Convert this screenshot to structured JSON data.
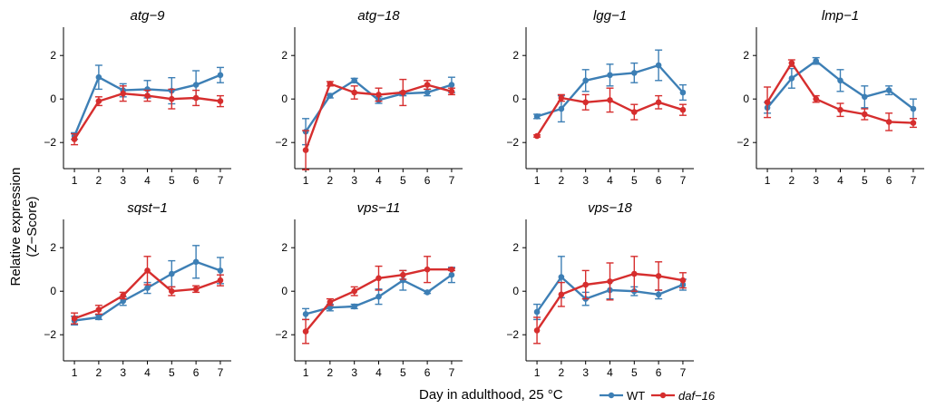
{
  "figure": {
    "ylabel_line1": "Relative expression",
    "ylabel_line2": "(Z−Score)",
    "xlabel": "Day in adulthood, 25 °C"
  },
  "legend": [
    {
      "name": "WT",
      "color": "#3d7fb5",
      "italic": false
    },
    {
      "name": "daf−16",
      "color": "#d62e2e",
      "italic": true
    }
  ],
  "chart_data": [
    {
      "type": "line",
      "title": "atg−9",
      "x": [
        1,
        2,
        3,
        4,
        5,
        6,
        7
      ],
      "ylim": [
        -3.2,
        3.3
      ],
      "yticks": [
        -2,
        0,
        2
      ],
      "xticks": [
        1,
        2,
        3,
        4,
        5,
        6,
        7
      ],
      "series": [
        {
          "name": "WT",
          "values": [
            -1.7,
            1.0,
            0.4,
            0.45,
            0.38,
            0.65,
            1.1
          ],
          "errors": [
            0.15,
            0.55,
            0.3,
            0.4,
            0.6,
            0.65,
            0.35
          ]
        },
        {
          "name": "daf−16",
          "values": [
            -1.85,
            -0.1,
            0.25,
            0.15,
            0.0,
            0.05,
            -0.1
          ],
          "errors": [
            0.25,
            0.2,
            0.35,
            0.25,
            0.45,
            0.35,
            0.25
          ]
        }
      ]
    },
    {
      "type": "line",
      "title": "atg−18",
      "x": [
        1,
        2,
        3,
        4,
        5,
        6,
        7
      ],
      "ylim": [
        -3.2,
        3.3
      ],
      "yticks": [
        -2,
        0,
        2
      ],
      "xticks": [
        1,
        2,
        3,
        4,
        5,
        6,
        7
      ],
      "series": [
        {
          "name": "WT",
          "values": [
            -1.5,
            0.15,
            0.85,
            -0.05,
            0.25,
            0.3,
            0.65
          ],
          "errors": [
            0.6,
            0.1,
            0.1,
            0.15,
            0.1,
            0.15,
            0.35
          ]
        },
        {
          "name": "daf−16",
          "values": [
            -2.35,
            0.7,
            0.3,
            0.2,
            0.3,
            0.65,
            0.35
          ],
          "errors": [
            0.9,
            0.1,
            0.3,
            0.3,
            0.6,
            0.2,
            0.15
          ]
        }
      ]
    },
    {
      "type": "line",
      "title": "lgg−1",
      "x": [
        1,
        2,
        3,
        4,
        5,
        6,
        7
      ],
      "ylim": [
        -3.2,
        3.3
      ],
      "yticks": [
        -2,
        0,
        2
      ],
      "xticks": [
        1,
        2,
        3,
        4,
        5,
        6,
        7
      ],
      "series": [
        {
          "name": "WT",
          "values": [
            -0.8,
            -0.45,
            0.85,
            1.1,
            1.2,
            1.55,
            0.3
          ],
          "errors": [
            0.1,
            0.6,
            0.5,
            0.5,
            0.45,
            0.7,
            0.35
          ]
        },
        {
          "name": "daf−16",
          "values": [
            -1.7,
            0.05,
            -0.15,
            -0.05,
            -0.6,
            -0.15,
            -0.5
          ],
          "errors": [
            0.05,
            0.15,
            0.35,
            0.55,
            0.35,
            0.3,
            0.25
          ]
        }
      ]
    },
    {
      "type": "line",
      "title": "lmp−1",
      "x": [
        1,
        2,
        3,
        4,
        5,
        6,
        7
      ],
      "ylim": [
        -3.2,
        3.3
      ],
      "yticks": [
        -2,
        0,
        2
      ],
      "xticks": [
        1,
        2,
        3,
        4,
        5,
        6,
        7
      ],
      "series": [
        {
          "name": "WT",
          "values": [
            -0.4,
            0.95,
            1.75,
            0.85,
            0.1,
            0.4,
            -0.45
          ],
          "errors": [
            0.25,
            0.45,
            0.15,
            0.5,
            0.5,
            0.2,
            0.45
          ]
        },
        {
          "name": "daf−16",
          "values": [
            -0.15,
            1.65,
            0.0,
            -0.5,
            -0.7,
            -1.05,
            -1.1
          ],
          "errors": [
            0.7,
            0.15,
            0.15,
            0.3,
            0.25,
            0.4,
            0.2
          ]
        }
      ]
    },
    {
      "type": "line",
      "title": "sqst−1",
      "x": [
        1,
        2,
        3,
        4,
        5,
        6,
        7
      ],
      "ylim": [
        -3.2,
        3.3
      ],
      "yticks": [
        -2,
        0,
        2
      ],
      "xticks": [
        1,
        2,
        3,
        4,
        5,
        6,
        7
      ],
      "series": [
        {
          "name": "WT",
          "values": [
            -1.35,
            -1.2,
            -0.45,
            0.15,
            0.8,
            1.35,
            0.95
          ],
          "errors": [
            0.2,
            0.1,
            0.2,
            0.25,
            0.6,
            0.75,
            0.6
          ]
        },
        {
          "name": "daf−16",
          "values": [
            -1.25,
            -0.85,
            -0.2,
            0.95,
            0.0,
            0.1,
            0.5
          ],
          "errors": [
            0.25,
            0.2,
            0.15,
            0.65,
            0.2,
            0.15,
            0.25
          ]
        }
      ]
    },
    {
      "type": "line",
      "title": "vps−11",
      "x": [
        1,
        2,
        3,
        4,
        5,
        6,
        7
      ],
      "ylim": [
        -3.2,
        3.3
      ],
      "yticks": [
        -2,
        0,
        2
      ],
      "xticks": [
        1,
        2,
        3,
        4,
        5,
        6,
        7
      ],
      "series": [
        {
          "name": "WT",
          "values": [
            -1.05,
            -0.75,
            -0.7,
            -0.25,
            0.5,
            -0.05,
            0.75
          ],
          "errors": [
            0.25,
            0.15,
            0.1,
            0.35,
            0.45,
            0.05,
            0.35
          ]
        },
        {
          "name": "daf−16",
          "values": [
            -1.85,
            -0.5,
            0.0,
            0.6,
            0.75,
            1.0,
            1.0
          ],
          "errors": [
            0.55,
            0.15,
            0.2,
            0.55,
            0.2,
            0.6,
            0.05
          ]
        }
      ]
    },
    {
      "type": "line",
      "title": "vps−18",
      "x": [
        1,
        2,
        3,
        4,
        5,
        6,
        7
      ],
      "ylim": [
        -3.2,
        3.3
      ],
      "yticks": [
        -2,
        0,
        2
      ],
      "xticks": [
        1,
        2,
        3,
        4,
        5,
        6,
        7
      ],
      "series": [
        {
          "name": "WT",
          "values": [
            -0.95,
            0.65,
            -0.35,
            0.05,
            0.0,
            -0.15,
            0.3
          ],
          "errors": [
            0.35,
            0.95,
            0.3,
            0.4,
            0.2,
            0.2,
            0.25
          ]
        },
        {
          "name": "daf−16",
          "values": [
            -1.8,
            -0.15,
            0.3,
            0.45,
            0.8,
            0.7,
            0.5
          ],
          "errors": [
            0.6,
            0.55,
            0.65,
            0.85,
            0.8,
            0.65,
            0.35
          ]
        }
      ]
    }
  ]
}
